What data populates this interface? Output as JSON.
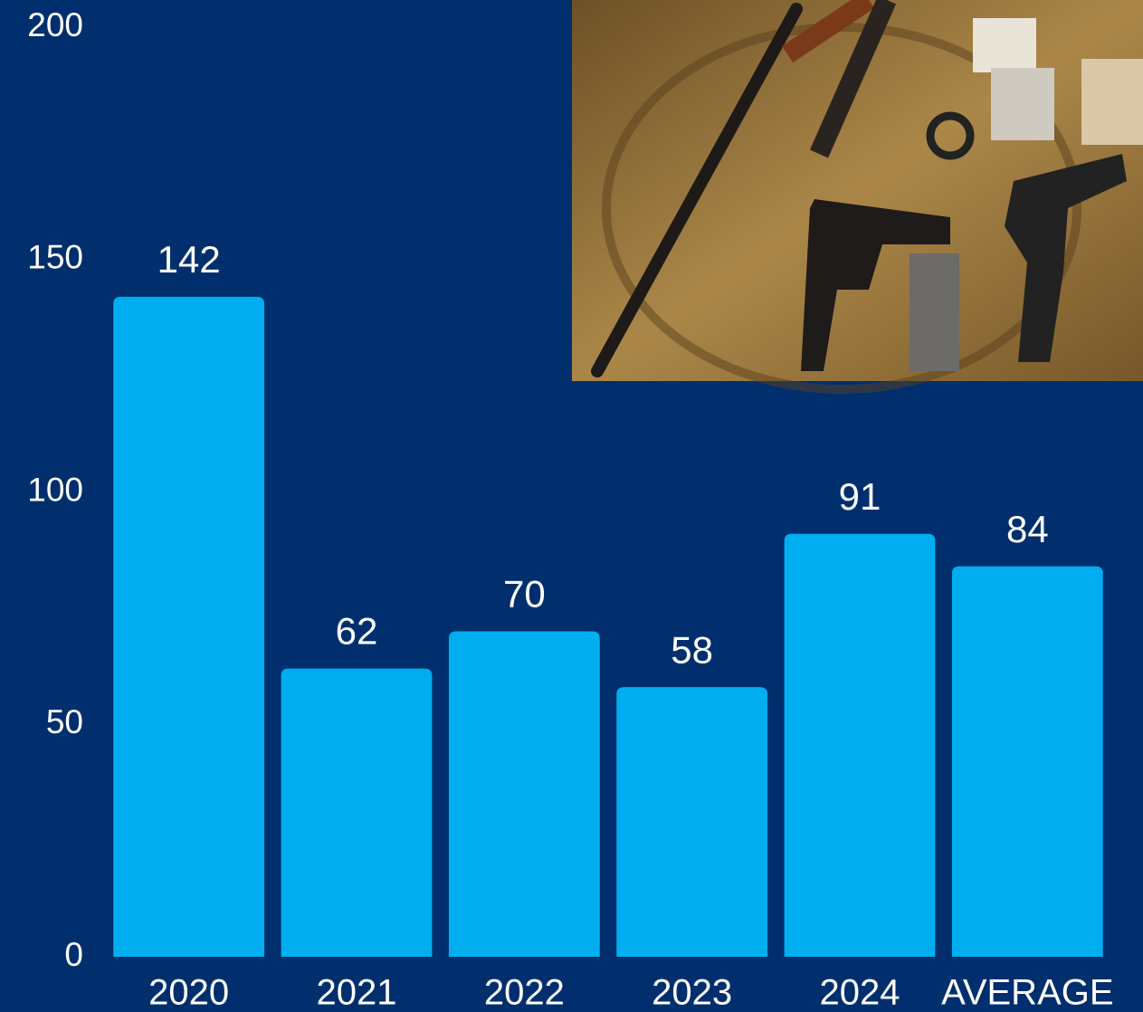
{
  "chart_data": {
    "type": "bar",
    "categories": [
      "2020",
      "2021",
      "2022",
      "2023",
      "2024",
      "AVERAGE"
    ],
    "values": [
      142,
      62,
      70,
      58,
      91,
      84
    ],
    "color": "#00aeef",
    "ylim": [
      0,
      200
    ],
    "yticks": [
      0,
      50,
      100,
      150,
      200
    ],
    "grid": false
  }
}
